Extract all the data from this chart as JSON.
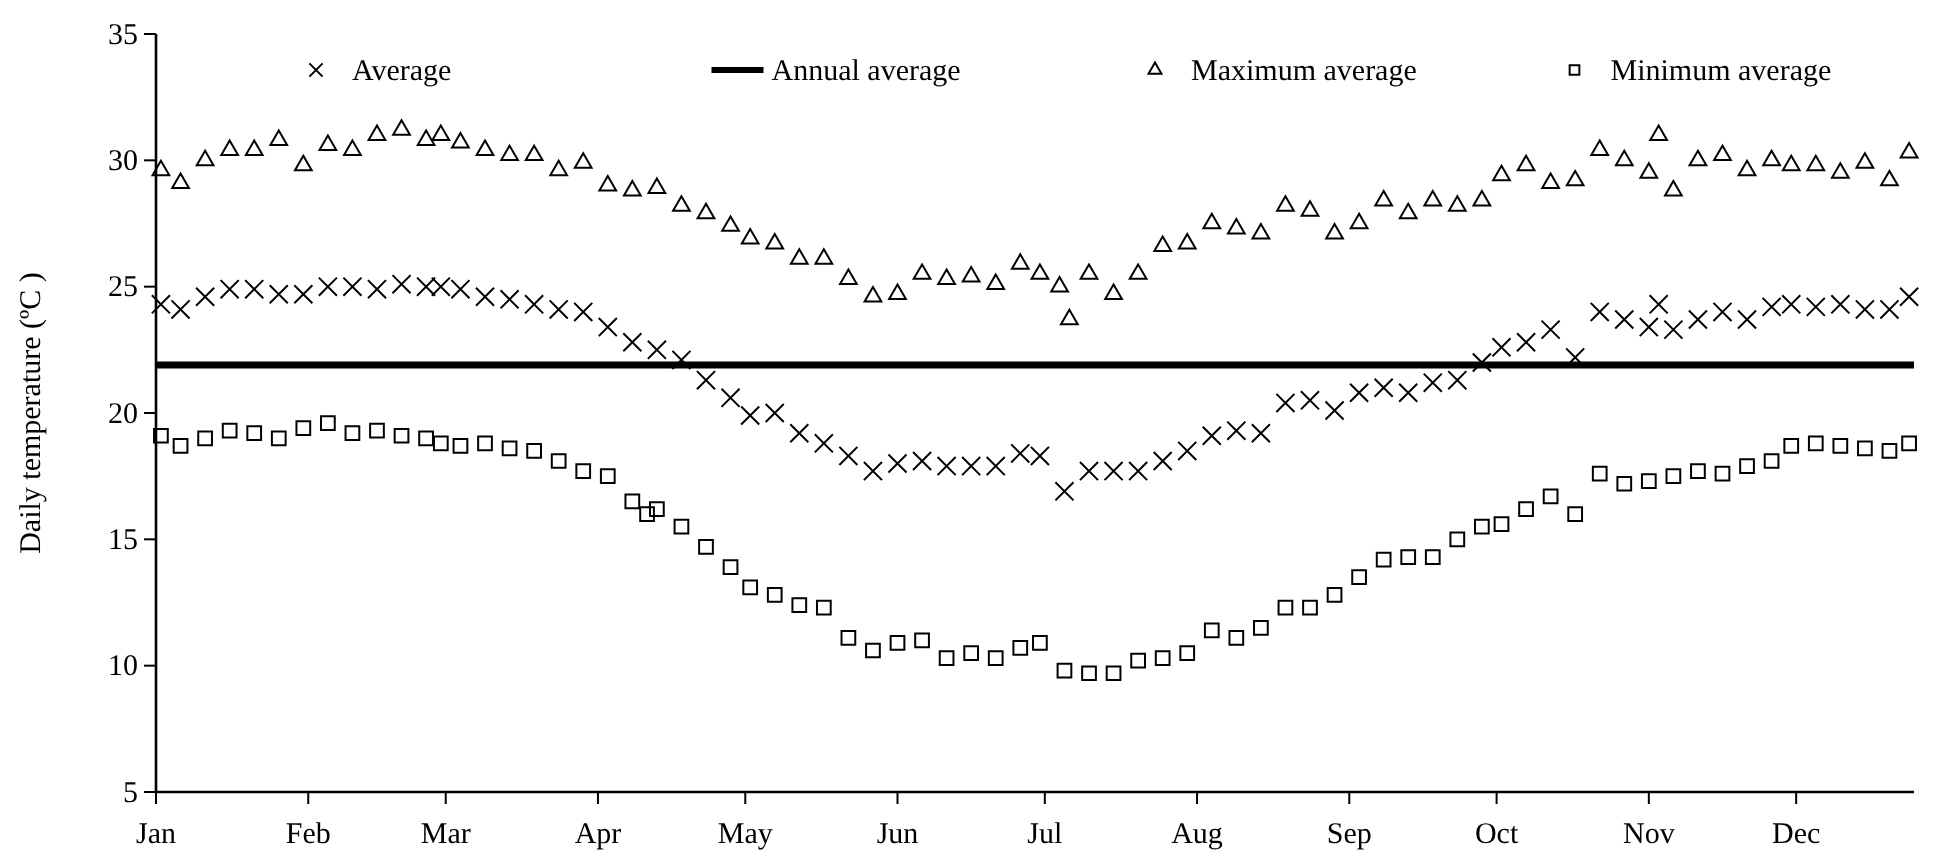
{
  "chart_data": {
    "type": "scatter",
    "ylabel": "Daily temperature (ºC )",
    "xlim": [
      "--01-01",
      "--12-25"
    ],
    "ylim": [
      5,
      35
    ],
    "xticks": [
      {
        "value": "--01-01",
        "label": "Jan"
      },
      {
        "value": "--02-01",
        "label": "Feb"
      },
      {
        "value": "--03-01",
        "label": "Mar"
      },
      {
        "value": "--04-01",
        "label": "Apr"
      },
      {
        "value": "--05-01",
        "label": "May"
      },
      {
        "value": "--06-01",
        "label": "Jun"
      },
      {
        "value": "--07-01",
        "label": "Jul"
      },
      {
        "value": "--08-01",
        "label": "Aug"
      },
      {
        "value": "--09-01",
        "label": "Sep"
      },
      {
        "value": "--10-01",
        "label": "Oct"
      },
      {
        "value": "--11-01",
        "label": "Nov"
      },
      {
        "value": "--12-01",
        "label": "Dec"
      }
    ],
    "yticks": [
      5,
      10,
      15,
      20,
      25,
      30,
      35
    ],
    "grid": false,
    "legend": "top",
    "series": [
      {
        "name": "Average",
        "marker": "cross",
        "color": "#000000",
        "x": [
          "--01-02",
          "--01-06",
          "--01-11",
          "--01-16",
          "--01-21",
          "--01-26",
          "--01-31",
          "--02-05",
          "--02-10",
          "--02-15",
          "--02-20",
          "--02-25",
          "--02-28",
          "--03-04",
          "--03-09",
          "--03-14",
          "--03-19",
          "--03-24",
          "--03-29",
          "--04-03",
          "--04-08",
          "--04-13",
          "--04-18",
          "--04-23",
          "--04-28",
          "--05-02",
          "--05-07",
          "--05-12",
          "--05-17",
          "--05-22",
          "--05-27",
          "--06-01",
          "--06-06",
          "--06-11",
          "--06-16",
          "--06-21",
          "--06-26",
          "--06-30",
          "--07-05",
          "--07-10",
          "--07-15",
          "--07-20",
          "--07-25",
          "--07-30",
          "--08-04",
          "--08-09",
          "--08-14",
          "--08-19",
          "--08-24",
          "--08-29",
          "--09-03",
          "--09-08",
          "--09-13",
          "--09-18",
          "--09-23",
          "--09-28",
          "--10-02",
          "--10-07",
          "--10-12",
          "--10-17",
          "--10-22",
          "--10-27",
          "--11-01",
          "--11-03",
          "--11-06",
          "--11-11",
          "--11-16",
          "--11-21",
          "--11-26",
          "--11-30",
          "--12-05",
          "--12-10",
          "--12-15",
          "--12-20",
          "--12-24"
        ],
        "values": [
          24.3,
          24.1,
          24.6,
          24.9,
          24.9,
          24.7,
          24.7,
          25.0,
          25.0,
          24.9,
          25.1,
          25.0,
          25.0,
          24.9,
          24.6,
          24.5,
          24.3,
          24.1,
          24.0,
          23.4,
          22.8,
          22.5,
          22.1,
          21.3,
          20.6,
          19.9,
          20.0,
          19.2,
          18.8,
          18.3,
          17.7,
          18.0,
          18.1,
          17.9,
          17.9,
          17.9,
          18.4,
          18.3,
          16.9,
          17.7,
          17.7,
          17.7,
          18.1,
          18.5,
          19.1,
          19.3,
          19.2,
          20.4,
          20.5,
          20.1,
          20.8,
          21.0,
          20.8,
          21.2,
          21.3,
          22.0,
          22.6,
          22.8,
          23.3,
          22.2,
          24.0,
          23.7,
          23.4,
          24.3,
          23.3,
          23.7,
          24.0,
          23.7,
          24.2,
          24.3,
          24.2,
          24.3,
          24.1,
          24.1,
          24.6
        ]
      },
      {
        "name": "Annual average",
        "type": "line",
        "marker": "none",
        "line_style": "solid",
        "color": "#000000",
        "x": [
          "--01-01",
          "--12-25"
        ],
        "values": [
          21.9,
          21.9
        ]
      },
      {
        "name": "Maximum average",
        "marker": "triangle",
        "color": "#000000",
        "x": [
          "--01-02",
          "--01-06",
          "--01-11",
          "--01-16",
          "--01-21",
          "--01-26",
          "--01-31",
          "--02-05",
          "--02-10",
          "--02-15",
          "--02-20",
          "--02-25",
          "--02-28",
          "--03-04",
          "--03-09",
          "--03-14",
          "--03-19",
          "--03-24",
          "--03-29",
          "--04-03",
          "--04-08",
          "--04-13",
          "--04-18",
          "--04-23",
          "--04-28",
          "--05-02",
          "--05-07",
          "--05-12",
          "--05-17",
          "--05-22",
          "--05-27",
          "--06-01",
          "--06-06",
          "--06-11",
          "--06-16",
          "--06-21",
          "--06-26",
          "--06-30",
          "--07-04",
          "--07-06",
          "--07-10",
          "--07-15",
          "--07-20",
          "--07-25",
          "--07-30",
          "--08-04",
          "--08-09",
          "--08-14",
          "--08-19",
          "--08-24",
          "--08-29",
          "--09-03",
          "--09-08",
          "--09-13",
          "--09-18",
          "--09-23",
          "--09-28",
          "--10-02",
          "--10-07",
          "--10-12",
          "--10-17",
          "--10-22",
          "--10-27",
          "--11-01",
          "--11-03",
          "--11-06",
          "--11-11",
          "--11-16",
          "--11-21",
          "--11-26",
          "--11-30",
          "--12-05",
          "--12-10",
          "--12-15",
          "--12-20",
          "--12-24"
        ],
        "values": [
          29.6,
          29.1,
          30.0,
          30.4,
          30.4,
          30.8,
          29.8,
          30.6,
          30.4,
          31.0,
          31.2,
          30.8,
          31.0,
          30.7,
          30.4,
          30.2,
          30.2,
          29.6,
          29.9,
          29.0,
          28.8,
          28.9,
          28.2,
          27.9,
          27.4,
          26.9,
          26.7,
          26.1,
          26.1,
          25.3,
          24.6,
          24.7,
          25.5,
          25.3,
          25.4,
          25.1,
          25.9,
          25.5,
          25.0,
          23.7,
          25.5,
          24.7,
          25.5,
          26.6,
          26.7,
          27.5,
          27.3,
          27.1,
          28.2,
          28.0,
          27.1,
          27.5,
          28.4,
          27.9,
          28.4,
          28.2,
          28.4,
          29.4,
          29.8,
          29.1,
          29.2,
          30.4,
          30.0,
          29.5,
          31.0,
          28.8,
          30.0,
          30.2,
          29.6,
          30.0,
          29.8,
          29.8,
          29.5,
          29.9,
          29.2,
          30.3
        ]
      },
      {
        "name": "Minimum average",
        "marker": "square",
        "color": "#000000",
        "x": [
          "--01-02",
          "--01-06",
          "--01-11",
          "--01-16",
          "--01-21",
          "--01-26",
          "--01-31",
          "--02-05",
          "--02-10",
          "--02-15",
          "--02-20",
          "--02-25",
          "--02-28",
          "--03-04",
          "--03-09",
          "--03-14",
          "--03-19",
          "--03-24",
          "--03-29",
          "--04-03",
          "--04-08",
          "--04-11",
          "--04-13",
          "--04-18",
          "--04-23",
          "--04-28",
          "--05-02",
          "--05-07",
          "--05-12",
          "--05-17",
          "--05-22",
          "--05-27",
          "--06-01",
          "--06-06",
          "--06-11",
          "--06-16",
          "--06-21",
          "--06-26",
          "--06-30",
          "--07-05",
          "--07-10",
          "--07-15",
          "--07-20",
          "--07-25",
          "--07-30",
          "--08-04",
          "--08-09",
          "--08-14",
          "--08-19",
          "--08-24",
          "--08-29",
          "--09-03",
          "--09-08",
          "--09-13",
          "--09-18",
          "--09-23",
          "--09-28",
          "--10-02",
          "--10-07",
          "--10-12",
          "--10-17",
          "--10-22",
          "--10-27",
          "--11-01",
          "--11-06",
          "--11-11",
          "--11-16",
          "--11-21",
          "--11-26",
          "--11-30",
          "--12-05",
          "--12-10",
          "--12-15",
          "--12-20",
          "--12-24"
        ],
        "values": [
          19.1,
          18.7,
          19.0,
          19.3,
          19.2,
          19.0,
          19.4,
          19.6,
          19.2,
          19.3,
          19.1,
          19.0,
          18.8,
          18.7,
          18.8,
          18.6,
          18.5,
          18.1,
          17.7,
          17.5,
          16.5,
          16.0,
          16.2,
          15.5,
          14.7,
          13.9,
          13.1,
          12.8,
          12.4,
          12.3,
          11.1,
          10.6,
          10.9,
          11.0,
          10.3,
          10.5,
          10.3,
          10.7,
          10.9,
          9.8,
          9.7,
          9.7,
          10.2,
          10.3,
          10.5,
          11.4,
          11.1,
          11.5,
          12.3,
          12.3,
          12.8,
          13.5,
          14.2,
          14.3,
          14.3,
          15.0,
          15.5,
          15.6,
          16.2,
          16.7,
          16.0,
          17.6,
          17.2,
          17.3,
          17.5,
          17.7,
          17.6,
          17.9,
          18.1,
          18.7,
          18.8,
          18.7,
          18.6,
          18.5,
          18.8
        ]
      }
    ]
  }
}
